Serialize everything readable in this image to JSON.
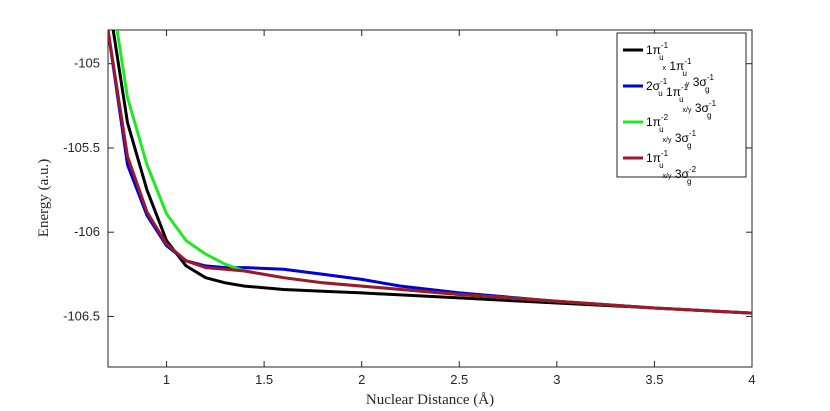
{
  "chart_data": {
    "type": "line",
    "xlabel": "Nuclear Distance (Å)",
    "ylabel": "Energy (a.u.)",
    "xlim": [
      0.7,
      4.0
    ],
    "ylim": [
      -106.8,
      -104.8
    ],
    "xticks": [
      1,
      1.5,
      2,
      2.5,
      3,
      3.5,
      4
    ],
    "xtick_labels": [
      "1",
      "1.5",
      "2",
      "2.5",
      "3",
      "3.5",
      "4"
    ],
    "yticks": [
      -105,
      -105.5,
      -106,
      -106.5
    ],
    "ytick_labels": [
      "-105",
      "-105.5",
      "-106",
      "-106.5"
    ],
    "grid": false,
    "legend_position": "top-right",
    "series": [
      {
        "name": "1π_ux^-1 1π_uy^-1 3σ_g^-1",
        "legend": [
          {
            "t": "1π"
          },
          {
            "sup": "-1",
            "sub": "u"
          },
          {
            "sub2": "x"
          },
          {
            "t": " 1π"
          },
          {
            "sup": "-1",
            "sub": "u"
          },
          {
            "sub2": "y"
          },
          {
            "t": " 3σ"
          },
          {
            "sup": "-1",
            "sub": "g"
          }
        ],
        "color": "#000000",
        "x": [
          0.72,
          0.8,
          0.9,
          1.0,
          1.1,
          1.2,
          1.3,
          1.4,
          1.6,
          1.8,
          2.0,
          2.5,
          3.0,
          3.5,
          4.0
        ],
        "y": [
          -104.75,
          -105.35,
          -105.75,
          -106.05,
          -106.2,
          -106.27,
          -106.3,
          -106.32,
          -106.34,
          -106.35,
          -106.36,
          -106.39,
          -106.42,
          -106.45,
          -106.48
        ]
      },
      {
        "name": "2σ_u^-1 1π_ux/y^-1 3σ_g^-1",
        "legend": [
          {
            "t": "2σ"
          },
          {
            "sup": "-1",
            "sub": "u"
          },
          {
            "t": " 1π"
          },
          {
            "sup": "-1",
            "sub": "u"
          },
          {
            "sub2": "x/y"
          },
          {
            "t": " 3σ"
          },
          {
            "sup": "-1",
            "sub": "g"
          }
        ],
        "color": "#0000d8",
        "x": [
          0.7,
          0.8,
          0.9,
          1.0,
          1.1,
          1.2,
          1.3,
          1.4,
          1.6,
          1.8,
          2.0,
          2.2,
          2.5,
          3.0,
          3.5,
          4.0
        ],
        "y": [
          -104.8,
          -105.6,
          -105.9,
          -106.08,
          -106.17,
          -106.2,
          -106.21,
          -106.21,
          -106.22,
          -106.25,
          -106.28,
          -106.32,
          -106.36,
          -106.41,
          -106.45,
          -106.48
        ]
      },
      {
        "name": "1π_ux/y^-2 3σ_g^-1",
        "legend": [
          {
            "t": "1π"
          },
          {
            "sup": "-2",
            "sub": "u"
          },
          {
            "sub2": "x/y"
          },
          {
            "t": " 3σ"
          },
          {
            "sup": "-1",
            "sub": "g"
          }
        ],
        "color": "#22e822",
        "x": [
          0.74,
          0.8,
          0.9,
          1.0,
          1.1,
          1.2,
          1.3,
          1.4,
          1.6,
          1.8,
          2.0,
          2.5,
          3.0,
          3.5,
          4.0
        ],
        "y": [
          -104.75,
          -105.2,
          -105.6,
          -105.89,
          -106.05,
          -106.13,
          -106.19,
          -106.23,
          -106.27,
          -106.3,
          -106.32,
          -106.37,
          -106.41,
          -106.45,
          -106.48
        ]
      },
      {
        "name": "1π_ux/y^-1 3σ_g^-2",
        "legend": [
          {
            "t": "1π"
          },
          {
            "sup": "-1",
            "sub": "u"
          },
          {
            "sub2": "x/y"
          },
          {
            "t": " 3σ"
          },
          {
            "sup": "-2",
            "sub": "g"
          }
        ],
        "color": "#a0162a",
        "x": [
          0.7,
          0.8,
          0.9,
          1.0,
          1.1,
          1.2,
          1.3,
          1.4,
          1.6,
          1.8,
          2.0,
          2.5,
          3.0,
          3.5,
          4.0
        ],
        "y": [
          -104.8,
          -105.55,
          -105.88,
          -106.07,
          -106.17,
          -106.21,
          -106.22,
          -106.23,
          -106.27,
          -106.3,
          -106.32,
          -106.37,
          -106.41,
          -106.45,
          -106.48
        ]
      }
    ]
  }
}
